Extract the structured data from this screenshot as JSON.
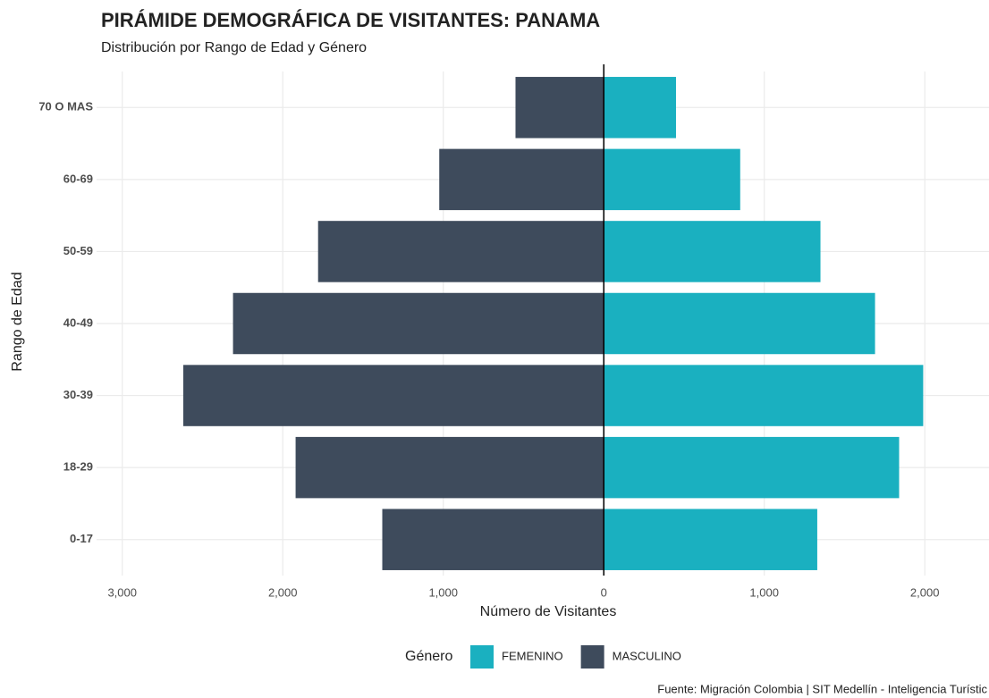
{
  "chart_data": {
    "type": "pyramid",
    "title": "PIRÁMIDE DEMOGRÁFICA DE VISITANTES: PANAMA",
    "subtitle": "Distribución por Rango de Edad y Género",
    "x_label": "Número de Visitantes",
    "y_label": "Rango de Edad",
    "legend_title": "Género",
    "caption": "Fuente: Migración Colombia | SIT Medellín - Inteligencia Turístic",
    "categories": [
      "0-17",
      "18-29",
      "30-39",
      "40-49",
      "50-59",
      "60-69",
      "70 O MAS"
    ],
    "series": [
      {
        "name": "FEMENINO",
        "color": "#1ab0c0",
        "values": [
          1330,
          1840,
          1990,
          1690,
          1350,
          850,
          450
        ]
      },
      {
        "name": "MASCULINO",
        "color": "#3e4b5c",
        "values": [
          -1380,
          -1920,
          -2620,
          -2310,
          -1780,
          -1025,
          -550
        ]
      }
    ],
    "xlim": [
      -3160,
      2400
    ],
    "xticks": [
      {
        "value": -3000,
        "label": "3,000"
      },
      {
        "value": -2000,
        "label": "2,000"
      },
      {
        "value": -1000,
        "label": "1,000"
      },
      0,
      {
        "value": 1000,
        "label": "1,000"
      },
      {
        "value": 2000,
        "label": "2,000"
      }
    ],
    "grid": true,
    "legend_position": "bottom"
  }
}
